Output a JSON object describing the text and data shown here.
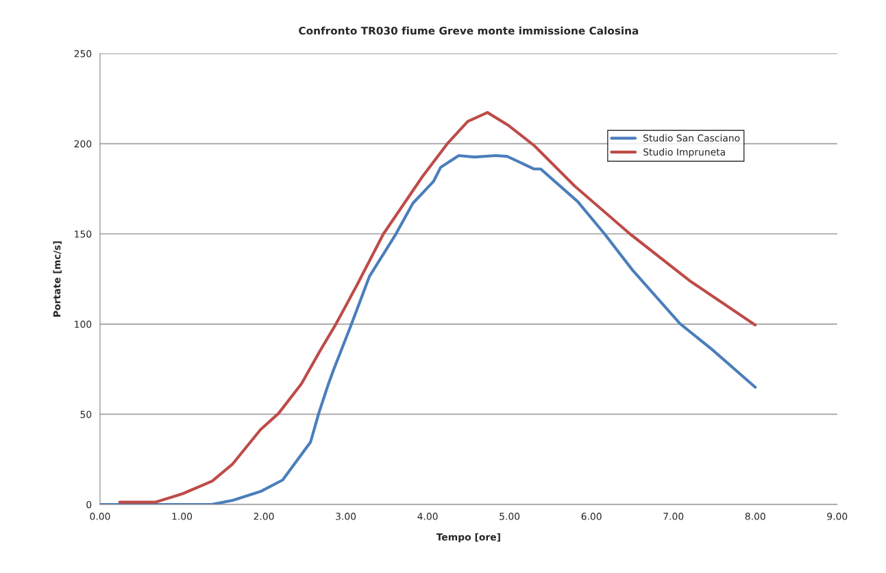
{
  "chart_data": {
    "type": "line",
    "title": "Confronto TR030 fiume Greve monte immissione Calosina",
    "xlabel": "Tempo [ore]",
    "ylabel": "Portate [mc/s]",
    "series": [
      {
        "name": "Studio San Casciano",
        "color": "#4a7ebb",
        "x": [
          0,
          0.7,
          1.36,
          1.62,
          1.96,
          2.23,
          2.57,
          2.67,
          2.79,
          2.85,
          3.07,
          3.29,
          3.6,
          3.82,
          4.07,
          4.16,
          4.38,
          4.57,
          4.83,
          4.97,
          5.3,
          5.38,
          5.83,
          6.16,
          6.5,
          7.08,
          7.47,
          8.0
        ],
        "values": [
          0,
          0,
          0,
          2.3,
          7.2,
          13.6,
          34.6,
          50.5,
          67,
          74.5,
          100,
          126.5,
          149,
          167,
          179,
          187,
          193.4,
          192.6,
          193.4,
          193,
          186,
          186,
          168,
          150,
          130,
          100.3,
          86,
          65
        ]
      },
      {
        "name": "Studio Impruneta",
        "color": "#be4b48",
        "x": [
          0.24,
          0.68,
          1.01,
          1.37,
          1.62,
          1.96,
          2.18,
          2.46,
          2.68,
          2.88,
          3.13,
          3.46,
          3.94,
          4.24,
          4.49,
          4.73,
          4.99,
          5.3,
          5.8,
          6.47,
          7.2,
          8.0
        ],
        "values": [
          1.3,
          1.3,
          6,
          13,
          22.5,
          41.5,
          50.5,
          67,
          84.7,
          100,
          121,
          150,
          182,
          200,
          212.4,
          217.3,
          210,
          199,
          176.3,
          150,
          124,
          99.5
        ]
      }
    ],
    "xlim": [
      0,
      9
    ],
    "xticks": [
      {
        "value": 0,
        "label": "0.00"
      },
      {
        "value": 1,
        "label": "1.00"
      },
      {
        "value": 2,
        "label": "2.00"
      },
      {
        "value": 3,
        "label": "3.00"
      },
      {
        "value": 4,
        "label": "4.00"
      },
      {
        "value": 5,
        "label": "5.00"
      },
      {
        "value": 6,
        "label": "6.00"
      },
      {
        "value": 7,
        "label": "7.00"
      },
      {
        "value": 8,
        "label": "8.00"
      },
      {
        "value": 9,
        "label": "9.00"
      }
    ],
    "ylim": [
      0,
      250
    ],
    "yticks": [
      0,
      50,
      100,
      150,
      200,
      250
    ],
    "grid": "y",
    "legend": "top right",
    "line_style": "solid",
    "marker": "none"
  }
}
